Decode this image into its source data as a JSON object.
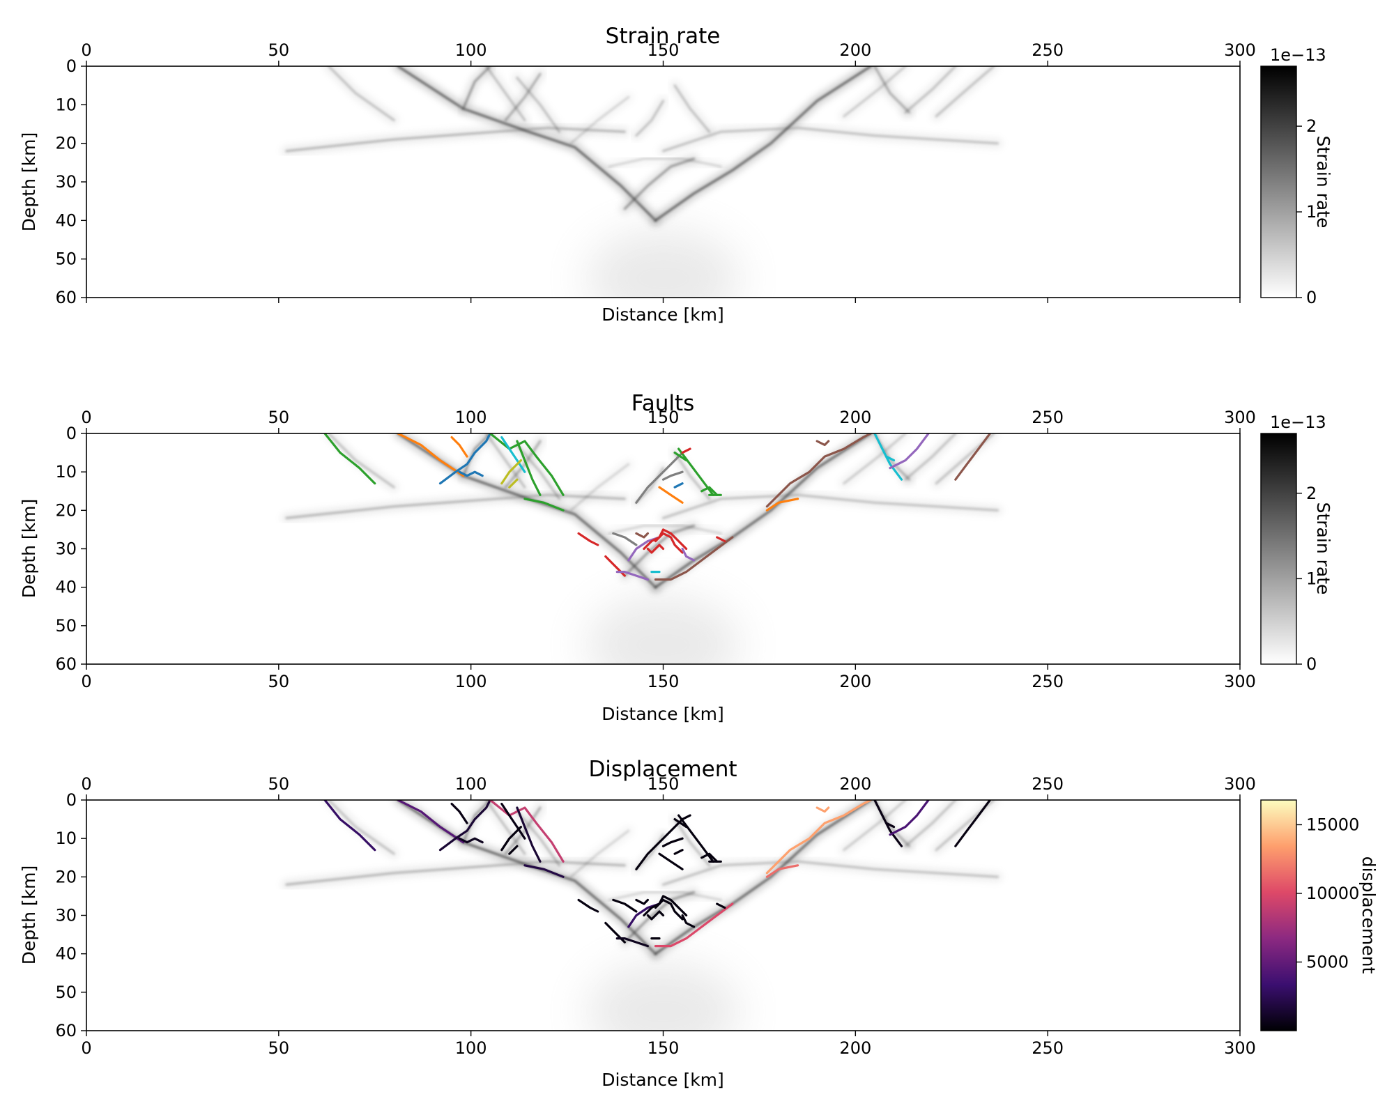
{
  "colors": {
    "strain_dark": "#2b2b2b",
    "fault_palette": [
      "#1f77b4",
      "#ff7f0e",
      "#2ca02c",
      "#d62728",
      "#9467bd",
      "#8c564b",
      "#e377c2",
      "#7f7f7f",
      "#bcbd22",
      "#17becf"
    ],
    "magma": [
      "#000004",
      "#3b0f70",
      "#8c2981",
      "#de4968",
      "#fe9f6d",
      "#fcfdbf"
    ]
  },
  "chart_data": [
    {
      "type": "heatmap",
      "title": "Strain rate",
      "xlabel": "Distance [km]",
      "ylabel": "Depth [km]",
      "xlim": [
        0,
        300
      ],
      "ylim": [
        60,
        0
      ],
      "xticks": [
        "0",
        "50",
        "100",
        "150",
        "200",
        "250",
        "300"
      ],
      "yticks": [
        "0",
        "10",
        "20",
        "30",
        "40",
        "50",
        "60"
      ],
      "colorbar": {
        "label": "Strain rate",
        "offset_text": "1e−13",
        "ticks": [
          "0",
          "1",
          "2"
        ],
        "range": [
          0,
          2.7
        ],
        "cmap": "gray_r"
      },
      "strain_bands": [
        {
          "x": [
            52,
            80,
            100,
            120,
            140
          ],
          "y": [
            22,
            19,
            17.5,
            16,
            17
          ],
          "intensity": 0.35
        },
        {
          "x": [
            150,
            165,
            185,
            205,
            237
          ],
          "y": [
            22,
            17,
            16,
            18,
            20
          ],
          "intensity": 0.3
        },
        {
          "x": [
            81,
            98,
            115,
            127,
            139,
            148
          ],
          "y": [
            0,
            11,
            17,
            21,
            31,
            40
          ],
          "intensity": 0.8
        },
        {
          "x": [
            148,
            158,
            168,
            178,
            190,
            204
          ],
          "y": [
            40,
            33,
            27,
            20,
            9,
            0
          ],
          "intensity": 0.8
        },
        {
          "x": [
            63,
            70,
            80
          ],
          "y": [
            0,
            7,
            14
          ],
          "intensity": 0.3
        },
        {
          "x": [
            98,
            101,
            105
          ],
          "y": [
            11,
            4,
            0
          ],
          "intensity": 0.5
        },
        {
          "x": [
            104,
            109,
            114
          ],
          "y": [
            0,
            7,
            14
          ],
          "intensity": 0.3
        },
        {
          "x": [
            109,
            114,
            118
          ],
          "y": [
            14,
            8,
            2
          ],
          "intensity": 0.4
        },
        {
          "x": [
            112,
            118,
            123
          ],
          "y": [
            3,
            10,
            17
          ],
          "intensity": 0.3
        },
        {
          "x": [
            126,
            133,
            141
          ],
          "y": [
            20,
            14,
            8
          ],
          "intensity": 0.2
        },
        {
          "x": [
            143,
            147,
            150
          ],
          "y": [
            18,
            14,
            9
          ],
          "intensity": 0.3
        },
        {
          "x": [
            140,
            146,
            152,
            158
          ],
          "y": [
            37,
            31,
            26,
            24
          ],
          "intensity": 0.5
        },
        {
          "x": [
            136,
            145,
            155,
            165
          ],
          "y": [
            26,
            24,
            24,
            26
          ],
          "intensity": 0.2
        },
        {
          "x": [
            153,
            157,
            162
          ],
          "y": [
            5,
            11,
            17
          ],
          "intensity": 0.3
        },
        {
          "x": [
            197,
            206,
            213
          ],
          "y": [
            13,
            6,
            0
          ],
          "intensity": 0.25
        },
        {
          "x": [
            205,
            209,
            214
          ],
          "y": [
            0,
            7,
            12
          ],
          "intensity": 0.4
        },
        {
          "x": [
            213,
            220,
            226
          ],
          "y": [
            12,
            6,
            0
          ],
          "intensity": 0.3
        },
        {
          "x": [
            221,
            229,
            236
          ],
          "y": [
            13,
            6,
            0
          ],
          "intensity": 0.3
        }
      ]
    },
    {
      "type": "line",
      "title": "Faults",
      "xlabel": "Distance [km]",
      "ylabel": "Depth [km]",
      "xlim": [
        0,
        300
      ],
      "ylim": [
        60,
        0
      ],
      "xticks": [
        "0",
        "50",
        "100",
        "150",
        "200",
        "250",
        "300"
      ],
      "yticks": [
        "0",
        "10",
        "20",
        "30",
        "40",
        "50",
        "60"
      ],
      "colorbar": {
        "label": "Strain rate",
        "offset_text": "1e−13",
        "ticks": [
          "0",
          "1",
          "2"
        ],
        "range": [
          0,
          2.7
        ],
        "cmap": "gray_r"
      },
      "faults": [
        {
          "x": [
            62,
            66,
            71,
            75
          ],
          "y": [
            0,
            5,
            9,
            13
          ],
          "color": 2
        },
        {
          "x": [
            81,
            87,
            92,
            98
          ],
          "y": [
            0,
            3,
            7,
            11
          ],
          "color": 1
        },
        {
          "x": [
            95,
            97,
            99
          ],
          "y": [
            1,
            3,
            6
          ],
          "color": 1
        },
        {
          "x": [
            92,
            96,
            99,
            101,
            104,
            105
          ],
          "y": [
            13,
            10,
            8,
            5,
            2,
            0
          ],
          "color": 0
        },
        {
          "x": [
            97,
            99,
            101,
            103
          ],
          "y": [
            10,
            11,
            10,
            11
          ],
          "color": 0
        },
        {
          "x": [
            105,
            110,
            114,
            117,
            121,
            124
          ],
          "y": [
            0,
            4,
            2,
            6,
            11,
            16
          ],
          "color": 2
        },
        {
          "x": [
            112,
            114,
            116,
            118
          ],
          "y": [
            2,
            7,
            12,
            16
          ],
          "color": 2
        },
        {
          "x": [
            108,
            110,
            112,
            114
          ],
          "y": [
            1,
            4,
            7,
            10
          ],
          "color": 9
        },
        {
          "x": [
            108,
            110,
            113
          ],
          "y": [
            13,
            10,
            7
          ],
          "color": 8
        },
        {
          "x": [
            110,
            112
          ],
          "y": [
            14,
            12
          ],
          "color": 8
        },
        {
          "x": [
            114,
            119,
            124
          ],
          "y": [
            17,
            18,
            20
          ],
          "color": 2
        },
        {
          "x": [
            128,
            131,
            133
          ],
          "y": [
            26,
            28,
            29
          ],
          "color": 3
        },
        {
          "x": [
            143,
            146,
            150,
            155
          ],
          "y": [
            18,
            14,
            10,
            5
          ],
          "color": 7
        },
        {
          "x": [
            150,
            152,
            155
          ],
          "y": [
            12,
            11,
            10
          ],
          "color": 7
        },
        {
          "x": [
            149,
            152,
            155
          ],
          "y": [
            14,
            16,
            18
          ],
          "color": 1
        },
        {
          "x": [
            153,
            155
          ],
          "y": [
            14,
            13
          ],
          "color": 0
        },
        {
          "x": [
            153,
            156
          ],
          "y": [
            5,
            7
          ],
          "color": 2
        },
        {
          "x": [
            154,
            157,
            160,
            163
          ],
          "y": [
            4,
            8,
            12,
            16
          ],
          "color": 2
        },
        {
          "x": [
            155,
            157
          ],
          "y": [
            5,
            4
          ],
          "color": 3
        },
        {
          "x": [
            160,
            162,
            164
          ],
          "y": [
            15,
            14,
            16
          ],
          "color": 2
        },
        {
          "x": [
            162,
            165
          ],
          "y": [
            16,
            16
          ],
          "color": 2
        },
        {
          "x": [
            135,
            137,
            139,
            140
          ],
          "y": [
            32,
            34,
            36,
            37
          ],
          "color": 3
        },
        {
          "x": [
            138,
            140,
            143,
            146
          ],
          "y": [
            36,
            36,
            37,
            38
          ],
          "color": 4
        },
        {
          "x": [
            137,
            140,
            143
          ],
          "y": [
            26,
            27,
            29
          ],
          "color": 7
        },
        {
          "x": [
            141,
            143,
            146,
            149
          ],
          "y": [
            33,
            30,
            28,
            27
          ],
          "color": 4
        },
        {
          "x": [
            143,
            145,
            146
          ],
          "y": [
            26,
            27,
            26
          ],
          "color": 5
        },
        {
          "x": [
            145,
            147,
            149,
            150,
            152,
            154,
            156
          ],
          "y": [
            30,
            28,
            27,
            25,
            26,
            28,
            30
          ],
          "color": 3
        },
        {
          "x": [
            148,
            150,
            152,
            153,
            155
          ],
          "y": [
            28,
            26,
            27,
            29,
            31
          ],
          "color": 3
        },
        {
          "x": [
            146,
            147,
            149,
            150
          ],
          "y": [
            30,
            31,
            29,
            30
          ],
          "color": 3
        },
        {
          "x": [
            155,
            156,
            158
          ],
          "y": [
            30,
            32,
            33
          ],
          "color": 4
        },
        {
          "x": [
            147,
            149
          ],
          "y": [
            36,
            36
          ],
          "color": 9
        },
        {
          "x": [
            148,
            152,
            156,
            160,
            164,
            168
          ],
          "y": [
            38,
            38,
            36,
            33,
            30,
            27
          ],
          "color": 5
        },
        {
          "x": [
            164,
            166
          ],
          "y": [
            27,
            28
          ],
          "color": 3
        },
        {
          "x": [
            177,
            180,
            185
          ],
          "y": [
            20,
            18,
            17
          ],
          "color": 1
        },
        {
          "x": [
            177,
            180,
            183,
            188,
            192,
            197,
            202,
            204
          ],
          "y": [
            19,
            16,
            13,
            10,
            6,
            4,
            1,
            0
          ],
          "color": 5
        },
        {
          "x": [
            190,
            192,
            193
          ],
          "y": [
            2,
            3,
            2
          ],
          "color": 5
        },
        {
          "x": [
            205,
            207,
            209,
            212
          ],
          "y": [
            0,
            4,
            8,
            12
          ],
          "color": 9
        },
        {
          "x": [
            208,
            210
          ],
          "y": [
            6,
            7
          ],
          "color": 9
        },
        {
          "x": [
            209,
            213,
            216,
            219
          ],
          "y": [
            9,
            7,
            4,
            0
          ],
          "color": 4
        },
        {
          "x": [
            226,
            229,
            232,
            235
          ],
          "y": [
            12,
            8,
            4,
            0
          ],
          "color": 5
        }
      ]
    },
    {
      "type": "line",
      "title": "Displacement",
      "xlabel": "Distance [km]",
      "ylabel": "Depth [km]",
      "xlim": [
        0,
        300
      ],
      "ylim": [
        60,
        0
      ],
      "xticks": [
        "0",
        "50",
        "100",
        "150",
        "200",
        "250",
        "300"
      ],
      "yticks": [
        "0",
        "10",
        "20",
        "30",
        "40",
        "50",
        "60"
      ],
      "colorbar": {
        "label": "displacement",
        "ticks": [
          "5000",
          "10000",
          "15000"
        ],
        "range": [
          0,
          16800
        ],
        "cmap": "magma"
      },
      "fault_displacement": [
        3000,
        4500,
        500,
        1500,
        800,
        9000,
        1500,
        500,
        300,
        300,
        2000,
        400,
        300,
        300,
        300,
        300,
        300,
        300,
        300,
        300,
        300,
        300,
        800,
        300,
        3000,
        300,
        300,
        300,
        300,
        300,
        300,
        10000,
        300,
        11500,
        13500,
        13500,
        500,
        500,
        4000,
        400
      ]
    }
  ]
}
